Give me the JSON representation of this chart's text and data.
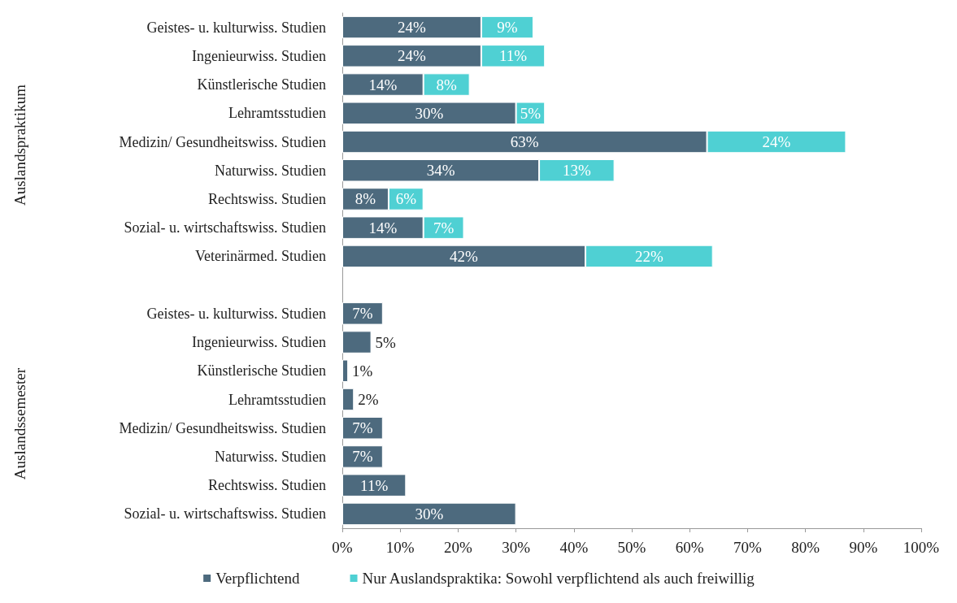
{
  "chart_data": {
    "type": "bar",
    "orientation": "horizontal",
    "stacked": true,
    "categories": [
      "Geistes- u. kulturwiss. Studien",
      "Ingenieurwiss. Studien",
      "Künstlerische Studien",
      "Lehramtsstudien",
      "Medizin/ Gesundheitswiss. Studien",
      "Naturwiss. Studien",
      "Rechtswiss. Studien",
      "Sozial- u. wirtschaftswiss. Studien",
      "Veterinärmed. Studien",
      null,
      "Geistes- u. kulturwiss. Studien",
      "Ingenieurwiss. Studien",
      "Künstlerische Studien",
      "Lehramtsstudien",
      "Medizin/ Gesundheitswiss. Studien",
      "Naturwiss. Studien",
      "Rechtswiss. Studien",
      "Sozial- u. wirtschaftswiss. Studien"
    ],
    "series": [
      {
        "name": "Verpflichtend",
        "color": "#4d6a7e",
        "values": [
          24,
          24,
          14,
          30,
          63,
          34,
          8,
          14,
          42,
          null,
          7,
          5,
          1,
          2,
          7,
          7,
          11,
          30
        ],
        "value_labels": [
          "24%",
          "24%",
          "14%",
          "30%",
          "63%",
          "34%",
          "8%",
          "14%",
          "42%",
          null,
          "7%",
          "5%",
          "1%",
          "2%",
          "7%",
          "7%",
          "11%",
          "30%"
        ]
      },
      {
        "name": "Nur Auslandspraktika: Sowohl verpflichtend als auch freiwillig",
        "color": "#4fd0d3",
        "values": [
          9,
          11,
          8,
          5,
          24,
          13,
          6,
          7,
          22,
          null,
          null,
          null,
          null,
          null,
          null,
          null,
          null,
          null
        ],
        "value_labels": [
          "9%",
          "11%",
          "8%",
          "5%",
          "24%",
          "13%",
          "6%",
          "7%",
          "22%",
          null,
          null,
          null,
          null,
          null,
          null,
          null,
          null,
          null
        ]
      }
    ],
    "xlim": [
      0,
      100
    ],
    "xticks": [
      {
        "value": 0,
        "label": "0%"
      },
      {
        "value": 10,
        "label": "10%"
      },
      {
        "value": 20,
        "label": "20%"
      },
      {
        "value": 30,
        "label": "30%"
      },
      {
        "value": 40,
        "label": "40%"
      },
      {
        "value": 50,
        "label": "50%"
      },
      {
        "value": 60,
        "label": "60%"
      },
      {
        "value": 70,
        "label": "70%"
      },
      {
        "value": 80,
        "label": "80%"
      },
      {
        "value": 90,
        "label": "90%"
      },
      {
        "value": 100,
        "label": "100%"
      }
    ],
    "grid": false,
    "legend": "bottom",
    "annotations": [
      "Auslandspraktikum",
      "Auslandssemester"
    ]
  }
}
